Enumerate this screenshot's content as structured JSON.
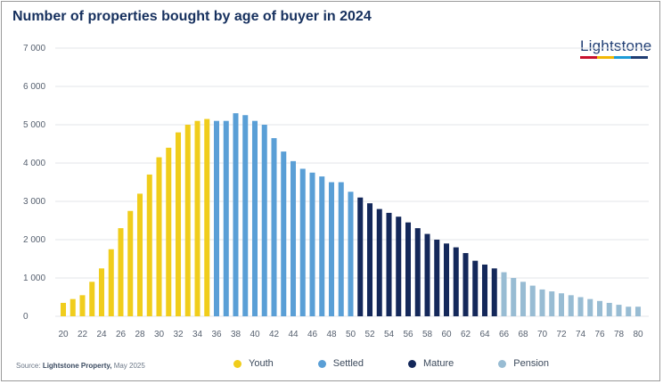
{
  "title": "Number of properties bought by age of buyer in 2024",
  "logo": {
    "text": "Lightstone",
    "bar_colors": [
      "#c8102e",
      "#f2b705",
      "#1d9bd7",
      "#1f3d73"
    ]
  },
  "source": {
    "label": "Source:",
    "org": "Lightstone Property,",
    "date": "May 2025"
  },
  "legend": [
    {
      "name": "Youth",
      "color": "#f0cd1c"
    },
    {
      "name": "Settled",
      "color": "#5a9fd6"
    },
    {
      "name": "Mature",
      "color": "#14285a"
    },
    {
      "name": "Pension",
      "color": "#98bcd3"
    }
  ],
  "chart_data": {
    "type": "bar",
    "title": "Number of properties bought by age of buyer in 2024",
    "xlabel": "",
    "ylabel": "",
    "ylim": [
      0,
      7000
    ],
    "yticks": [
      0,
      1000,
      2000,
      3000,
      4000,
      5000,
      6000,
      7000
    ],
    "ytick_labels": [
      "0",
      "1 000",
      "2 000",
      "3 000",
      "4 000",
      "5 000",
      "6 000",
      "7 000"
    ],
    "xtick_labels": [
      "20",
      "22",
      "24",
      "26",
      "28",
      "30",
      "32",
      "34",
      "36",
      "38",
      "40",
      "42",
      "44",
      "46",
      "48",
      "50",
      "52",
      "54",
      "56",
      "58",
      "60",
      "62",
      "64",
      "66",
      "68",
      "70",
      "72",
      "74",
      "76",
      "78",
      "80"
    ],
    "grid": true,
    "legend_position": "bottom",
    "categories": [
      20,
      21,
      22,
      23,
      24,
      25,
      26,
      27,
      28,
      29,
      30,
      31,
      32,
      33,
      34,
      35,
      36,
      37,
      38,
      39,
      40,
      41,
      42,
      43,
      44,
      45,
      46,
      47,
      48,
      49,
      50,
      51,
      52,
      53,
      54,
      55,
      56,
      57,
      58,
      59,
      60,
      61,
      62,
      63,
      64,
      65,
      66,
      67,
      68,
      69,
      70,
      71,
      72,
      73,
      74,
      75,
      76,
      77,
      78,
      79,
      80
    ],
    "values": [
      350,
      450,
      550,
      900,
      1250,
      1750,
      2300,
      2750,
      3200,
      3700,
      4150,
      4400,
      4800,
      5000,
      5100,
      5150,
      5100,
      5100,
      5300,
      5250,
      5100,
      5000,
      4650,
      4300,
      4050,
      3850,
      3750,
      3650,
      3500,
      3500,
      3250,
      3100,
      2950,
      2800,
      2700,
      2600,
      2450,
      2300,
      2150,
      2000,
      1900,
      1800,
      1650,
      1450,
      1350,
      1250,
      1150,
      1000,
      900,
      800,
      700,
      650,
      600,
      550,
      500,
      450,
      400,
      350,
      300,
      250,
      250
    ],
    "groups": [
      {
        "name": "Youth",
        "from": 20,
        "to": 35
      },
      {
        "name": "Settled",
        "from": 36,
        "to": 50
      },
      {
        "name": "Mature",
        "from": 51,
        "to": 65
      },
      {
        "name": "Pension",
        "from": 66,
        "to": 80
      }
    ]
  }
}
